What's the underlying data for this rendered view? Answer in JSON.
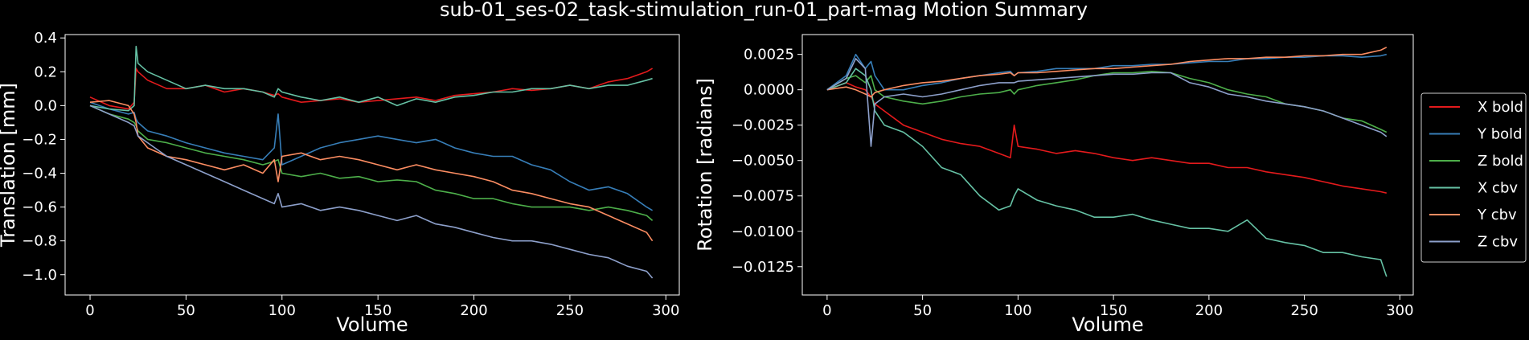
{
  "figure": {
    "title": "sub-01_ses-02_task-stimulation_run-01_part-mag Motion Summary"
  },
  "legend": {
    "placement": "right, outside",
    "entries": [
      "X bold",
      "Y bold",
      "Z bold",
      "X cbv",
      "Y cbv",
      "Z cbv"
    ]
  },
  "chart_data": [
    {
      "type": "line",
      "title": "",
      "xlabel": "Volume",
      "ylabel": "Translation [mm]",
      "xlim": [
        -13,
        307
      ],
      "ylim": [
        -1.12,
        0.42
      ],
      "xticks": [
        0,
        50,
        100,
        150,
        200,
        250,
        300
      ],
      "yticks": [
        0.4,
        0.2,
        0.0,
        -0.2,
        -0.4,
        -0.6,
        -0.8,
        -1.0
      ],
      "ytick_labels": [
        "0.4",
        "0.2",
        "0.0",
        "−0.2",
        "−0.4",
        "−0.6",
        "−0.8",
        "−1.0"
      ],
      "grid": false,
      "x": [
        0,
        10,
        20,
        23,
        24,
        25,
        30,
        40,
        50,
        60,
        70,
        80,
        90,
        96,
        98,
        100,
        110,
        120,
        130,
        140,
        150,
        160,
        170,
        180,
        190,
        200,
        210,
        220,
        230,
        240,
        250,
        260,
        270,
        280,
        290,
        293
      ],
      "series": [
        {
          "name": "X bold",
          "color": "#e41a1c",
          "values": [
            0.05,
            0.0,
            -0.02,
            0.02,
            0.22,
            0.2,
            0.15,
            0.1,
            0.1,
            0.12,
            0.08,
            0.1,
            0.08,
            0.06,
            0.07,
            0.05,
            0.02,
            0.03,
            0.04,
            0.02,
            0.03,
            0.04,
            0.05,
            0.03,
            0.06,
            0.07,
            0.08,
            0.1,
            0.09,
            0.1,
            0.12,
            0.1,
            0.14,
            0.16,
            0.2,
            0.22
          ]
        },
        {
          "name": "Y bold",
          "color": "#377eb8",
          "values": [
            0.02,
            -0.02,
            -0.05,
            -0.04,
            -0.08,
            -0.1,
            -0.15,
            -0.18,
            -0.22,
            -0.25,
            -0.28,
            -0.3,
            -0.32,
            -0.25,
            -0.05,
            -0.35,
            -0.3,
            -0.25,
            -0.22,
            -0.2,
            -0.18,
            -0.2,
            -0.22,
            -0.2,
            -0.25,
            -0.28,
            -0.3,
            -0.3,
            -0.35,
            -0.38,
            -0.45,
            -0.5,
            -0.48,
            -0.52,
            -0.6,
            -0.62
          ]
        },
        {
          "name": "Z bold",
          "color": "#4daf4a",
          "values": [
            0.0,
            -0.05,
            -0.08,
            -0.1,
            -0.12,
            -0.15,
            -0.2,
            -0.22,
            -0.25,
            -0.28,
            -0.3,
            -0.32,
            -0.35,
            -0.33,
            -0.32,
            -0.4,
            -0.42,
            -0.4,
            -0.43,
            -0.42,
            -0.45,
            -0.44,
            -0.45,
            -0.5,
            -0.52,
            -0.55,
            -0.55,
            -0.58,
            -0.6,
            -0.6,
            -0.6,
            -0.62,
            -0.6,
            -0.62,
            -0.65,
            -0.68
          ]
        },
        {
          "name": "X cbv",
          "color": "#66c2a5",
          "values": [
            0.0,
            -0.02,
            -0.03,
            0.0,
            0.35,
            0.25,
            0.2,
            0.15,
            0.1,
            0.12,
            0.1,
            0.1,
            0.08,
            0.05,
            0.1,
            0.08,
            0.05,
            0.03,
            0.05,
            0.02,
            0.05,
            0.0,
            0.04,
            0.02,
            0.05,
            0.06,
            0.08,
            0.08,
            0.1,
            0.1,
            0.12,
            0.1,
            0.12,
            0.12,
            0.15,
            0.16
          ]
        },
        {
          "name": "Y cbv",
          "color": "#fc8d62",
          "values": [
            0.02,
            0.03,
            0.0,
            -0.05,
            -0.1,
            -0.18,
            -0.25,
            -0.3,
            -0.32,
            -0.35,
            -0.38,
            -0.35,
            -0.4,
            -0.32,
            -0.45,
            -0.3,
            -0.28,
            -0.32,
            -0.3,
            -0.32,
            -0.35,
            -0.38,
            -0.35,
            -0.38,
            -0.4,
            -0.42,
            -0.45,
            -0.5,
            -0.52,
            -0.55,
            -0.58,
            -0.6,
            -0.65,
            -0.7,
            -0.75,
            -0.8
          ]
        },
        {
          "name": "Z cbv",
          "color": "#8da0cb",
          "values": [
            0.0,
            -0.05,
            -0.1,
            -0.12,
            -0.15,
            -0.18,
            -0.22,
            -0.3,
            -0.35,
            -0.4,
            -0.45,
            -0.5,
            -0.55,
            -0.58,
            -0.52,
            -0.6,
            -0.58,
            -0.62,
            -0.6,
            -0.62,
            -0.65,
            -0.68,
            -0.65,
            -0.7,
            -0.72,
            -0.75,
            -0.78,
            -0.8,
            -0.8,
            -0.82,
            -0.85,
            -0.88,
            -0.9,
            -0.95,
            -0.98,
            -1.02
          ]
        }
      ]
    },
    {
      "type": "line",
      "title": "",
      "xlabel": "Volume",
      "ylabel": "Rotation [radians]",
      "xlim": [
        -13,
        307
      ],
      "ylim": [
        -0.0145,
        0.0039
      ],
      "xticks": [
        0,
        50,
        100,
        150,
        200,
        250,
        300
      ],
      "yticks": [
        0.0025,
        0.0,
        -0.0025,
        -0.005,
        -0.0075,
        -0.01,
        -0.0125
      ],
      "ytick_labels": [
        "0.0025",
        "0.0000",
        "−0.0025",
        "−0.0050",
        "−0.0075",
        "−0.0100",
        "−0.0125"
      ],
      "grid": false,
      "x": [
        0,
        10,
        15,
        20,
        23,
        25,
        30,
        40,
        50,
        60,
        70,
        80,
        90,
        96,
        98,
        100,
        110,
        120,
        130,
        140,
        150,
        160,
        170,
        180,
        190,
        200,
        210,
        220,
        230,
        240,
        250,
        260,
        270,
        280,
        290,
        293
      ],
      "series": [
        {
          "name": "X bold",
          "color": "#e41a1c",
          "values": [
            0.0,
            0.0005,
            0.0002,
            0.0,
            -0.0005,
            -0.001,
            -0.0015,
            -0.0025,
            -0.003,
            -0.0035,
            -0.0038,
            -0.004,
            -0.0045,
            -0.0048,
            -0.0025,
            -0.004,
            -0.0042,
            -0.0045,
            -0.0043,
            -0.0045,
            -0.0048,
            -0.005,
            -0.0048,
            -0.005,
            -0.0052,
            -0.0052,
            -0.0055,
            -0.0055,
            -0.0058,
            -0.006,
            -0.0062,
            -0.0065,
            -0.0068,
            -0.007,
            -0.0072,
            -0.0073
          ]
        },
        {
          "name": "Y bold",
          "color": "#377eb8",
          "values": [
            0.0,
            0.001,
            0.0025,
            0.0015,
            0.002,
            0.001,
            0.0,
            0.0,
            0.0003,
            0.0005,
            0.0008,
            0.001,
            0.0012,
            0.0013,
            0.001,
            0.0012,
            0.0013,
            0.0015,
            0.0015,
            0.0015,
            0.0017,
            0.0017,
            0.0018,
            0.0018,
            0.0019,
            0.002,
            0.002,
            0.0022,
            0.0022,
            0.0023,
            0.0023,
            0.0024,
            0.0024,
            0.0023,
            0.0024,
            0.0025
          ]
        },
        {
          "name": "Z bold",
          "color": "#4daf4a",
          "values": [
            0.0,
            0.0008,
            0.001,
            0.0005,
            0.001,
            0.0,
            -0.0005,
            -0.0008,
            -0.001,
            -0.0008,
            -0.0005,
            -0.0003,
            -0.0002,
            0.0,
            -0.0003,
            0.0,
            0.0003,
            0.0005,
            0.0007,
            0.001,
            0.0012,
            0.0012,
            0.0013,
            0.0012,
            0.0008,
            0.0005,
            0.0,
            -0.0003,
            -0.0005,
            -0.001,
            -0.0012,
            -0.0015,
            -0.002,
            -0.0022,
            -0.0028,
            -0.003
          ]
        },
        {
          "name": "X cbv",
          "color": "#66c2a5",
          "values": [
            0.0,
            0.0005,
            0.0015,
            0.001,
            0.0,
            -0.0015,
            -0.0025,
            -0.003,
            -0.004,
            -0.0055,
            -0.006,
            -0.0075,
            -0.0085,
            -0.0082,
            -0.0075,
            -0.007,
            -0.0078,
            -0.0082,
            -0.0085,
            -0.009,
            -0.009,
            -0.0088,
            -0.0092,
            -0.0095,
            -0.0098,
            -0.0098,
            -0.01,
            -0.0092,
            -0.0105,
            -0.0108,
            -0.011,
            -0.0115,
            -0.0115,
            -0.0118,
            -0.012,
            -0.0132
          ]
        },
        {
          "name": "Y cbv",
          "color": "#fc8d62",
          "values": [
            0.0,
            0.0002,
            0.0,
            -0.0003,
            -0.0005,
            -0.0002,
            0.0,
            0.0003,
            0.0005,
            0.0006,
            0.0008,
            0.001,
            0.0011,
            0.0012,
            0.001,
            0.0012,
            0.0012,
            0.0013,
            0.0014,
            0.0015,
            0.0015,
            0.0016,
            0.0017,
            0.0018,
            0.002,
            0.0021,
            0.0022,
            0.0022,
            0.0023,
            0.0023,
            0.0024,
            0.0024,
            0.0025,
            0.0025,
            0.0028,
            0.003
          ]
        },
        {
          "name": "Z cbv",
          "color": "#8da0cb",
          "values": [
            0.0,
            0.0008,
            0.0022,
            0.0015,
            -0.004,
            -0.001,
            -0.0005,
            -0.0003,
            -0.0005,
            -0.0003,
            0.0,
            0.0003,
            0.0005,
            0.0005,
            0.0005,
            0.0006,
            0.0007,
            0.0008,
            0.0009,
            0.001,
            0.0011,
            0.0011,
            0.0012,
            0.0012,
            0.0005,
            0.0002,
            -0.0003,
            -0.0005,
            -0.0008,
            -0.001,
            -0.0012,
            -0.0015,
            -0.002,
            -0.0025,
            -0.003,
            -0.0033
          ]
        }
      ]
    }
  ]
}
